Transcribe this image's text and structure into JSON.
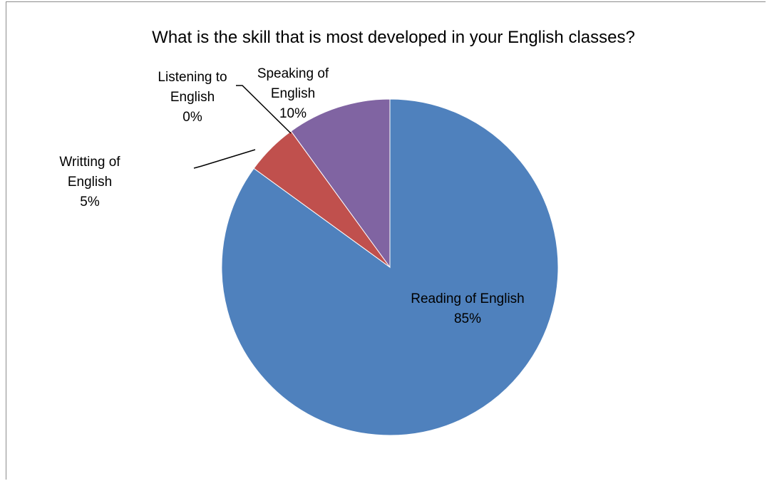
{
  "chart_data": {
    "type": "pie",
    "title": "What is the skill that is most developed in your English classes?",
    "slices": [
      {
        "name": "Reading of English",
        "value": 85,
        "label_lines": [
          "Reading of English",
          "85%"
        ],
        "color": "#4f81bd",
        "label_pos": "inside"
      },
      {
        "name": "Writting of English",
        "value": 5,
        "label_lines": [
          "Writting of",
          "English",
          "5%"
        ],
        "color": "#c0504d",
        "label_pos": "outside-left"
      },
      {
        "name": "Listening to English",
        "value": 0,
        "label_lines": [
          "Listening to",
          "English",
          "0%"
        ],
        "color": "#9bbb59",
        "label_pos": "outside-top-left"
      },
      {
        "name": "Speaking of English",
        "value": 10,
        "label_lines": [
          "Speaking of",
          "English",
          "10%"
        ],
        "color": "#8064a2",
        "label_pos": "outside-top"
      }
    ]
  }
}
